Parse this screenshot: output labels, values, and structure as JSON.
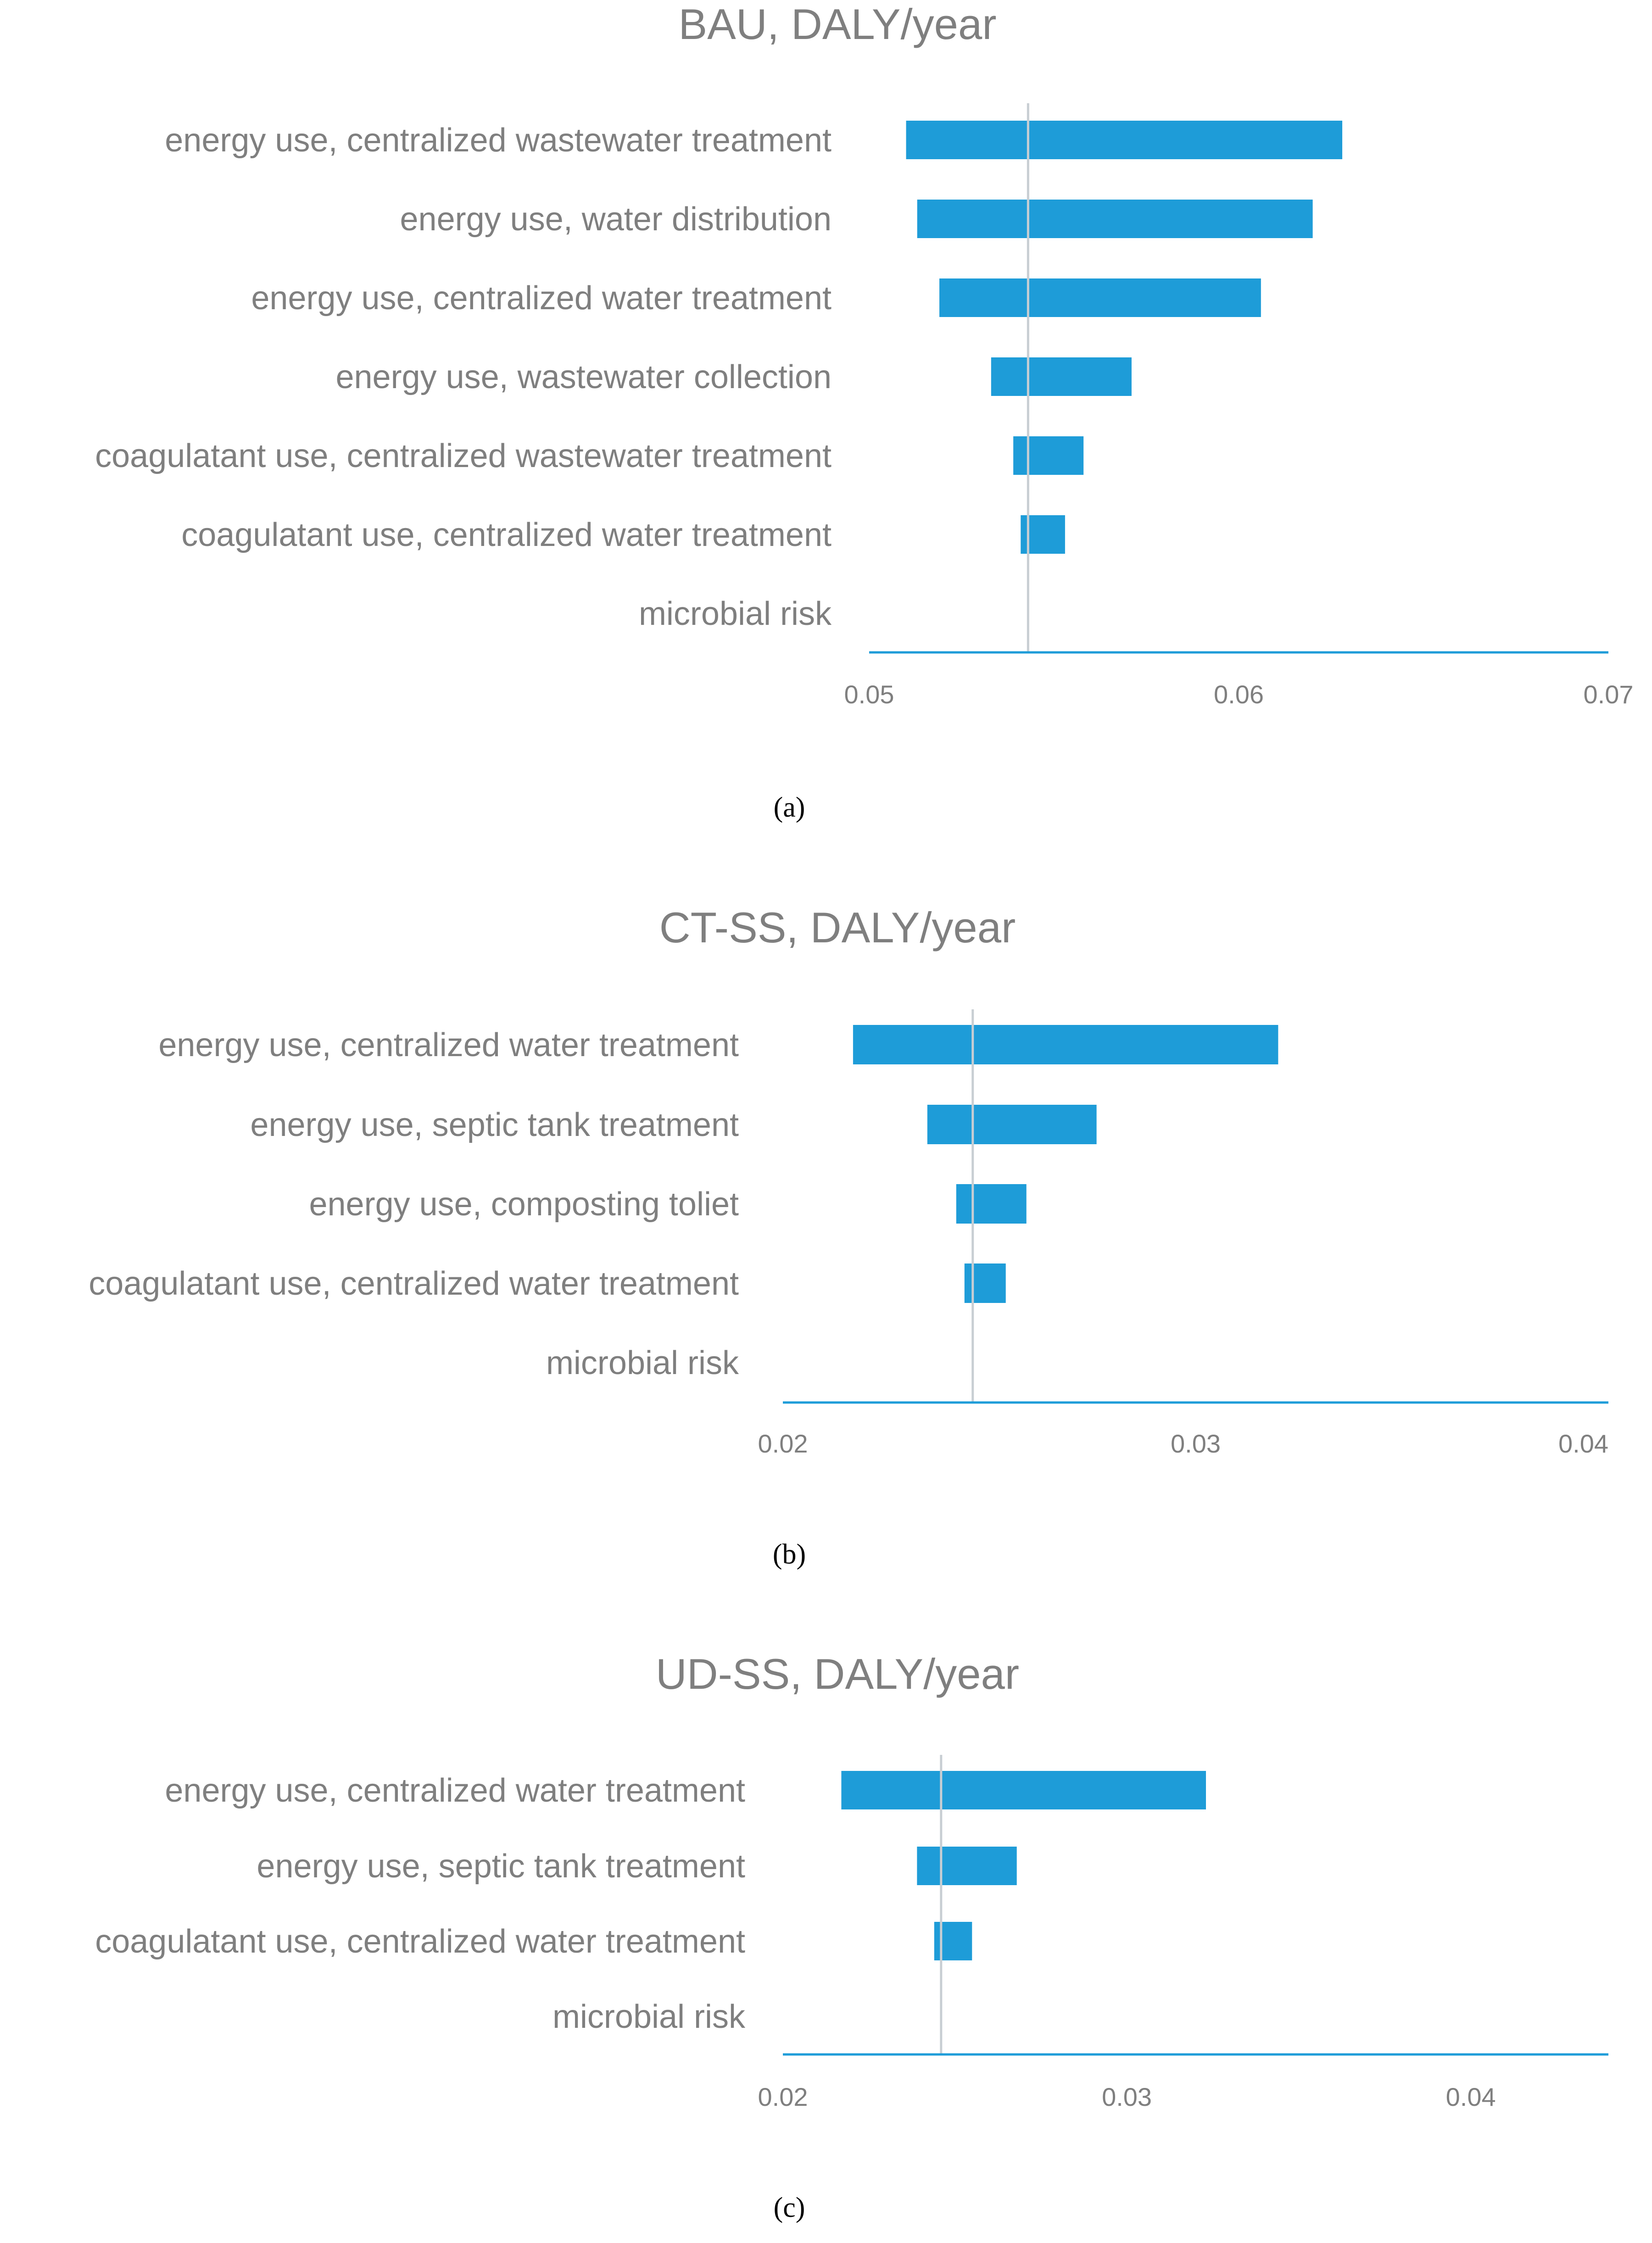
{
  "colors": {
    "bar": "#1e9cd8",
    "axis": "#1e9cd8",
    "baseline": "#c8ced3",
    "text": "#7f7f7f"
  },
  "chart_data": [
    {
      "type": "bar",
      "orientation": "horizontal",
      "chart_kind": "tornado",
      "title": "BAU, DALY/year",
      "caption": "(a)",
      "xlim": [
        0.05,
        0.07
      ],
      "xticks": [
        0.05,
        0.06,
        0.07
      ],
      "tick_labels": [
        "0.05",
        "0.06",
        "0.07"
      ],
      "baseline": 0.0543,
      "categories": [
        "energy use, centralized wastewater treatment",
        "energy use, water distribution",
        "energy use, centralized water treatment",
        "energy use, wastewater collection",
        "coagulatant use, centralized wastewater treatment",
        "coagulatant use, centralized water treatment",
        "microbial risk"
      ],
      "low": [
        0.051,
        0.0513,
        0.0519,
        0.0533,
        0.0539,
        0.0541,
        0.0543
      ],
      "high": [
        0.0628,
        0.062,
        0.0606,
        0.0571,
        0.0558,
        0.0553,
        0.0543
      ]
    },
    {
      "type": "bar",
      "orientation": "horizontal",
      "chart_kind": "tornado",
      "title": "CT-SS, DALY/year",
      "caption": "(b)",
      "xlim": [
        0.02,
        0.04
      ],
      "xticks": [
        0.02,
        0.03,
        0.04
      ],
      "tick_labels": [
        "0.02",
        "0.03",
        "0.04"
      ],
      "baseline": 0.0246,
      "categories": [
        "energy use, centralized water treatment",
        "energy use, septic tank treatment",
        "energy use, composting toliet",
        "coagulatant use, centralized water treatment",
        "microbial risk"
      ],
      "low": [
        0.0217,
        0.0235,
        0.0242,
        0.0244,
        0.0246
      ],
      "high": [
        0.032,
        0.0276,
        0.0259,
        0.0254,
        0.0246
      ]
    },
    {
      "type": "bar",
      "orientation": "horizontal",
      "chart_kind": "tornado",
      "title": "UD-SS, DALY/year",
      "caption": "(c)",
      "xlim": [
        0.02,
        0.044
      ],
      "xticks": [
        0.02,
        0.03,
        0.04
      ],
      "tick_labels": [
        "0.02",
        "0.03",
        "0.04"
      ],
      "baseline": 0.0246,
      "categories": [
        "energy use, centralized water treatment",
        "energy use, septic tank treatment",
        "coagulatant use, centralized water treatment",
        "microbial risk"
      ],
      "low": [
        0.0217,
        0.0239,
        0.0244,
        0.0246
      ],
      "high": [
        0.0323,
        0.0268,
        0.0255,
        0.0246
      ]
    }
  ]
}
